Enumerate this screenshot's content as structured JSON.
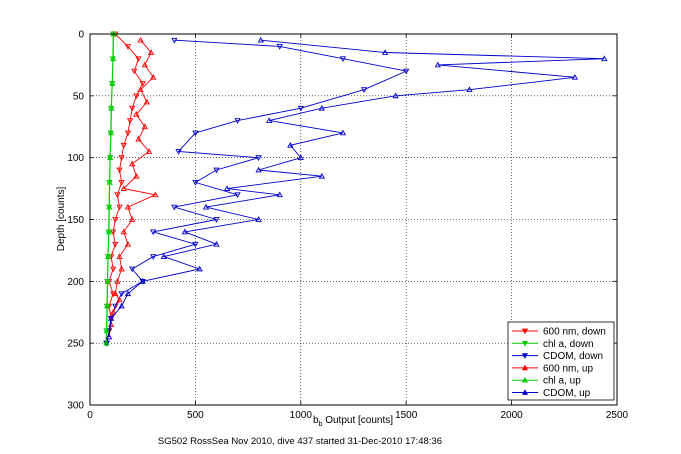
{
  "chart_data": {
    "type": "scatter",
    "title": "",
    "xlabel_main": "b",
    "xlabel_sub": "b",
    "xlabel_rest": " Output [counts]",
    "ylabel": "Depth [counts]",
    "caption": "SG502 RossSea Nov 2010, dive 437 started 31-Dec-2010 17:48:36",
    "xlim": [
      0,
      2500
    ],
    "ylim": [
      0,
      300
    ],
    "y_reversed": true,
    "grid": true,
    "legend_position": "bottom-right",
    "xticks": [
      "0",
      "500",
      "1000",
      "1500",
      "2000",
      "2500"
    ],
    "yticks": [
      "0",
      "50",
      "100",
      "150",
      "200",
      "250",
      "300"
    ],
    "series": [
      {
        "name": "600 nm, down",
        "color": "#ff0000",
        "marker": "triangle-down",
        "points": [
          [
            120,
            0
          ],
          [
            180,
            10
          ],
          [
            230,
            20
          ],
          [
            210,
            30
          ],
          [
            250,
            40
          ],
          [
            220,
            50
          ],
          [
            200,
            60
          ],
          [
            190,
            70
          ],
          [
            180,
            80
          ],
          [
            160,
            90
          ],
          [
            150,
            100
          ],
          [
            140,
            110
          ],
          [
            150,
            120
          ],
          [
            130,
            130
          ],
          [
            140,
            140
          ],
          [
            120,
            150
          ],
          [
            110,
            160
          ],
          [
            120,
            170
          ],
          [
            100,
            180
          ],
          [
            110,
            190
          ],
          [
            90,
            200
          ],
          [
            110,
            210
          ],
          [
            90,
            220
          ],
          [
            100,
            230
          ],
          [
            90,
            240
          ],
          [
            80,
            250
          ]
        ]
      },
      {
        "name": "chl a, down",
        "color": "#00cc00",
        "marker": "triangle-down",
        "points": [
          [
            110,
            0
          ],
          [
            108,
            20
          ],
          [
            105,
            40
          ],
          [
            100,
            60
          ],
          [
            98,
            80
          ],
          [
            95,
            100
          ],
          [
            92,
            120
          ],
          [
            90,
            140
          ],
          [
            88,
            160
          ],
          [
            85,
            180
          ],
          [
            82,
            200
          ],
          [
            80,
            220
          ],
          [
            78,
            240
          ],
          [
            76,
            250
          ]
        ]
      },
      {
        "name": "CDOM, down",
        "color": "#0000cc",
        "marker": "triangle-down",
        "points": [
          [
            400,
            5
          ],
          [
            900,
            10
          ],
          [
            1200,
            20
          ],
          [
            1500,
            30
          ],
          [
            1300,
            45
          ],
          [
            1000,
            60
          ],
          [
            700,
            70
          ],
          [
            500,
            80
          ],
          [
            420,
            95
          ],
          [
            800,
            100
          ],
          [
            600,
            110
          ],
          [
            500,
            120
          ],
          [
            700,
            130
          ],
          [
            400,
            140
          ],
          [
            600,
            150
          ],
          [
            300,
            160
          ],
          [
            500,
            170
          ],
          [
            300,
            180
          ],
          [
            200,
            190
          ],
          [
            250,
            200
          ],
          [
            150,
            210
          ],
          [
            120,
            220
          ],
          [
            100,
            230
          ],
          [
            90,
            240
          ],
          [
            80,
            250
          ]
        ]
      },
      {
        "name": "600 nm, up",
        "color": "#ff0000",
        "marker": "triangle-up",
        "points": [
          [
            240,
            5
          ],
          [
            290,
            15
          ],
          [
            260,
            25
          ],
          [
            300,
            35
          ],
          [
            240,
            45
          ],
          [
            270,
            55
          ],
          [
            220,
            65
          ],
          [
            260,
            75
          ],
          [
            230,
            85
          ],
          [
            280,
            95
          ],
          [
            200,
            105
          ],
          [
            220,
            115
          ],
          [
            160,
            125
          ],
          [
            310,
            130
          ],
          [
            180,
            140
          ],
          [
            200,
            150
          ],
          [
            160,
            160
          ],
          [
            180,
            170
          ],
          [
            140,
            180
          ],
          [
            150,
            190
          ],
          [
            130,
            200
          ],
          [
            120,
            210
          ],
          [
            140,
            215
          ],
          [
            110,
            225
          ],
          [
            100,
            235
          ],
          [
            90,
            245
          ]
        ]
      },
      {
        "name": "chl a, up",
        "color": "#00cc00",
        "marker": "triangle-up",
        "points": [
          [
            112,
            0
          ],
          [
            110,
            20
          ],
          [
            106,
            40
          ],
          [
            102,
            60
          ],
          [
            100,
            80
          ],
          [
            96,
            100
          ],
          [
            94,
            120
          ],
          [
            92,
            140
          ],
          [
            90,
            160
          ],
          [
            86,
            180
          ],
          [
            84,
            200
          ],
          [
            82,
            220
          ],
          [
            80,
            240
          ],
          [
            78,
            250
          ]
        ]
      },
      {
        "name": "CDOM, up",
        "color": "#0000cc",
        "marker": "triangle-up",
        "points": [
          [
            810,
            5
          ],
          [
            1400,
            15
          ],
          [
            2440,
            20
          ],
          [
            1650,
            25
          ],
          [
            2300,
            35
          ],
          [
            1800,
            45
          ],
          [
            1450,
            50
          ],
          [
            1100,
            60
          ],
          [
            850,
            70
          ],
          [
            1200,
            80
          ],
          [
            950,
            90
          ],
          [
            1000,
            100
          ],
          [
            800,
            110
          ],
          [
            1100,
            115
          ],
          [
            650,
            125
          ],
          [
            900,
            130
          ],
          [
            550,
            140
          ],
          [
            800,
            150
          ],
          [
            450,
            160
          ],
          [
            600,
            170
          ],
          [
            350,
            180
          ],
          [
            520,
            190
          ],
          [
            250,
            200
          ],
          [
            180,
            210
          ],
          [
            150,
            220
          ],
          [
            100,
            230
          ],
          [
            90,
            245
          ]
        ]
      }
    ]
  }
}
